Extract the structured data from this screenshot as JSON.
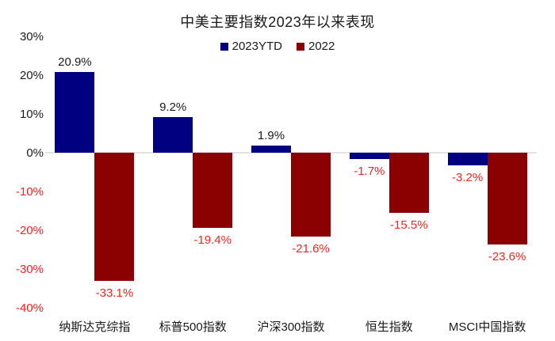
{
  "title": "中美主要指数2023年以来表现",
  "legend": {
    "items": [
      {
        "label": "2023YTD",
        "color": "#000080"
      },
      {
        "label": "2022",
        "color": "#8B0000"
      }
    ]
  },
  "chart_data": {
    "type": "bar",
    "title": "中美主要指数2023年以来表现",
    "xlabel": "",
    "ylabel": "",
    "categories": [
      "纳斯达克综指",
      "标普500指数",
      "沪深300指数",
      "恒生指数",
      "MSCI中国指数"
    ],
    "series": [
      {
        "name": "2023YTD",
        "color": "#000080",
        "values": [
          20.9,
          9.2,
          1.9,
          -1.7,
          -3.2
        ],
        "data_labels": [
          "20.9%",
          "9.2%",
          "1.9%",
          "-1.7%",
          "-3.2%"
        ]
      },
      {
        "name": "2022",
        "color": "#8B0000",
        "values": [
          -33.1,
          -19.4,
          -21.6,
          -15.5,
          -23.6
        ],
        "data_labels": [
          "-33.1%",
          "-19.4%",
          "-21.6%",
          "-15.5%",
          "-23.6%"
        ]
      }
    ],
    "ylim": [
      -40,
      30
    ],
    "ytick_step": 10,
    "yticks": [
      {
        "value": 30,
        "label": "30%"
      },
      {
        "value": 20,
        "label": "20%"
      },
      {
        "value": 10,
        "label": "10%"
      },
      {
        "value": 0,
        "label": "0%"
      },
      {
        "value": -10,
        "label": "-10%"
      },
      {
        "value": -20,
        "label": "-20%"
      },
      {
        "value": -30,
        "label": "-30%"
      },
      {
        "value": -40,
        "label": "-40%"
      }
    ],
    "grid": false,
    "legend_position": "top-center",
    "colors": {
      "series_2023ytd": "#000080",
      "series_2022": "#8B0000",
      "positive_text": "#1a1a1a",
      "negative_text": "#ff2222",
      "zero_line": "#e3e3e3"
    }
  }
}
